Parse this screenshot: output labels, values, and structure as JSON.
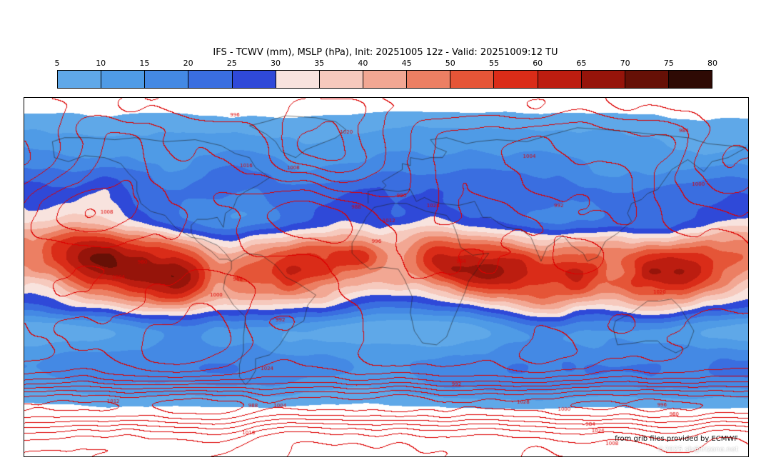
{
  "header": {
    "title": "IFS - TCWV (mm), MSLP (hPa), Init: 20251005 12z - Valid: 20251009:12 TU"
  },
  "colorbar": {
    "unit": "mm",
    "ticks": [
      "5",
      "10",
      "15",
      "20",
      "25",
      "30",
      "35",
      "40",
      "45",
      "50",
      "55",
      "60",
      "65",
      "70",
      "75",
      "80"
    ],
    "segment_colors": [
      "#5fa8e8",
      "#4f9be6",
      "#4489e4",
      "#3a6ee0",
      "#2f49d8",
      "#f8e3de",
      "#f6c9bd",
      "#f2a793",
      "#ec7f63",
      "#e55537",
      "#da2c18",
      "#bc1d10",
      "#96140a",
      "#661006",
      "#2e0a04"
    ]
  },
  "map": {
    "field_fill": "Total column water vapour (mm)",
    "field_contours": "Mean sea level pressure (hPa)",
    "contour_color": "#dd0000",
    "contour_interval_hpa": 4,
    "contour_labels": [
      "980",
      "984",
      "988",
      "992",
      "996",
      "1000",
      "1004",
      "1008",
      "1012",
      "1016",
      "1020",
      "1024",
      "1028"
    ],
    "credits": {
      "line1": "from grib files provided by ECMWF",
      "line2": "©2025 sb@irizone.net"
    }
  }
}
